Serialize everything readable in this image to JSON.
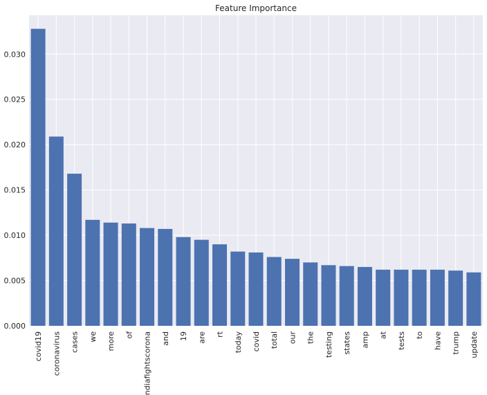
{
  "chart_data": {
    "type": "bar",
    "title": "Feature Importance",
    "xlabel": "",
    "ylabel": "",
    "categories": [
      "covid19",
      "coronavirus",
      "cases",
      "we",
      "more",
      "of",
      "indiafightscorona",
      "and",
      "19",
      "are",
      "rt",
      "today",
      "covid",
      "total",
      "our",
      "the",
      "testing",
      "states",
      "amp",
      "at",
      "tests",
      "to",
      "have",
      "trump",
      "update"
    ],
    "values": [
      0.0328,
      0.0209,
      0.0168,
      0.0117,
      0.0114,
      0.0113,
      0.0108,
      0.0107,
      0.0098,
      0.0095,
      0.009,
      0.0082,
      0.0081,
      0.0076,
      0.0074,
      0.007,
      0.0067,
      0.0066,
      0.0065,
      0.0062,
      0.0062,
      0.0062,
      0.0062,
      0.0061,
      0.0059
    ],
    "ylim": [
      0,
      0.0343
    ],
    "yticks": [
      "0.000",
      "0.005",
      "0.010",
      "0.015",
      "0.020",
      "0.025",
      "0.030"
    ],
    "grid": true,
    "colors": {
      "bar": "#4c72b0",
      "background": "#eaeaf2",
      "grid": "#ffffff"
    }
  }
}
